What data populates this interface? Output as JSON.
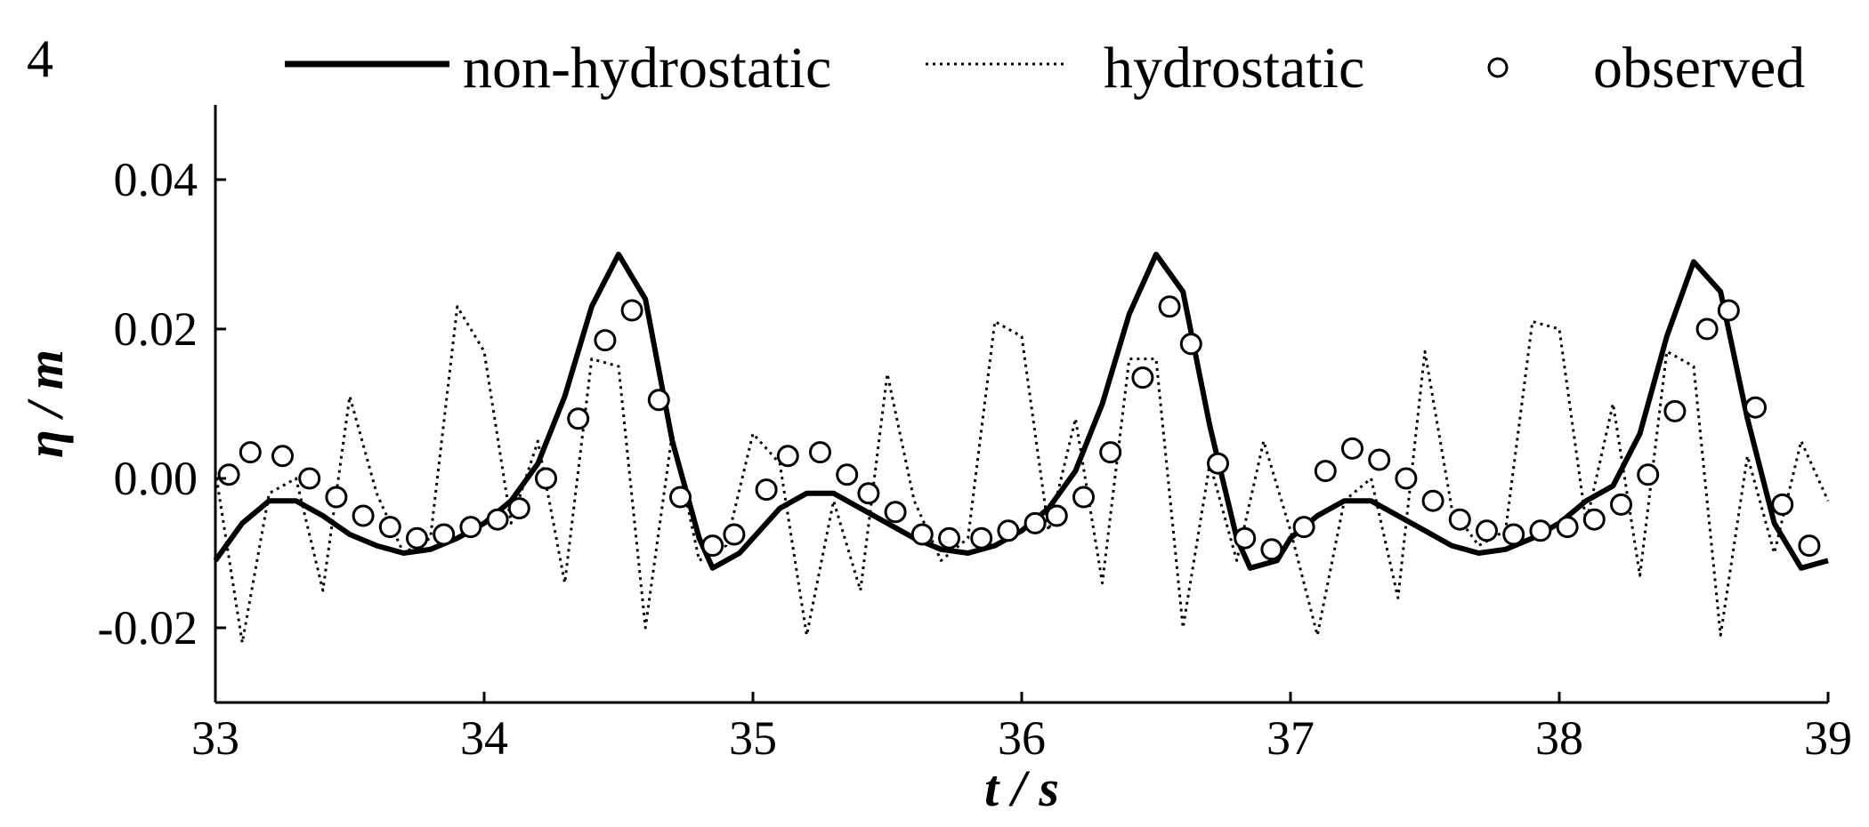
{
  "panel_label": "4",
  "legend": {
    "nonhydrostatic": "non-hydrostatic",
    "hydrostatic": "hydrostatic",
    "observed": "observed"
  },
  "colors": {
    "line": "#000000",
    "marker_fill": "#ffffff"
  },
  "chart_data": {
    "type": "line",
    "xlabel": "t / s",
    "ylabel": "η / m",
    "xlim": [
      33,
      39
    ],
    "ylim": [
      -0.03,
      0.05
    ],
    "xticks": [
      33,
      34,
      35,
      36,
      37,
      38,
      39
    ],
    "xtick_labels": [
      "33",
      "34",
      "35",
      "36",
      "37",
      "38",
      "39"
    ],
    "yticks": [
      -0.02,
      0.0,
      0.02,
      0.04
    ],
    "ytick_labels": [
      "-0.02",
      "0.00",
      "0.02",
      "0.04"
    ],
    "grid": false,
    "legend_position": "top",
    "series": [
      {
        "name": "non-hydrostatic",
        "style": "solid",
        "x": [
          33.0,
          33.1,
          33.2,
          33.3,
          33.4,
          33.5,
          33.6,
          33.7,
          33.8,
          33.9,
          34.0,
          34.1,
          34.2,
          34.3,
          34.4,
          34.5,
          34.6,
          34.7,
          34.8,
          34.85,
          34.95,
          35.0,
          35.1,
          35.2,
          35.3,
          35.4,
          35.5,
          35.6,
          35.7,
          35.8,
          35.9,
          36.0,
          36.1,
          36.2,
          36.3,
          36.4,
          36.5,
          36.6,
          36.7,
          36.8,
          36.85,
          36.95,
          37.0,
          37.1,
          37.2,
          37.3,
          37.4,
          37.5,
          37.6,
          37.7,
          37.8,
          37.9,
          38.0,
          38.1,
          38.2,
          38.3,
          38.4,
          38.5,
          38.6,
          38.7,
          38.8,
          38.9,
          39.0
        ],
        "values": [
          -0.011,
          -0.006,
          -0.003,
          -0.003,
          -0.005,
          -0.0075,
          -0.009,
          -0.01,
          -0.0095,
          -0.008,
          -0.006,
          -0.003,
          0.002,
          0.011,
          0.023,
          0.03,
          0.024,
          0.005,
          -0.008,
          -0.012,
          -0.01,
          -0.008,
          -0.004,
          -0.002,
          -0.002,
          -0.004,
          -0.006,
          -0.008,
          -0.0095,
          -0.01,
          -0.009,
          -0.007,
          -0.004,
          0.001,
          0.01,
          0.022,
          0.03,
          0.025,
          0.007,
          -0.008,
          -0.012,
          -0.011,
          -0.008,
          -0.005,
          -0.003,
          -0.003,
          -0.005,
          -0.007,
          -0.009,
          -0.01,
          -0.0095,
          -0.008,
          -0.006,
          -0.003,
          -0.001,
          0.006,
          0.019,
          0.029,
          0.025,
          0.008,
          -0.006,
          -0.012,
          -0.011
        ]
      },
      {
        "name": "hydrostatic",
        "style": "dotted",
        "x": [
          33.0,
          33.1,
          33.2,
          33.3,
          33.4,
          33.5,
          33.6,
          33.7,
          33.8,
          33.9,
          34.0,
          34.1,
          34.2,
          34.3,
          34.4,
          34.5,
          34.6,
          34.7,
          34.8,
          34.9,
          35.0,
          35.1,
          35.2,
          35.3,
          35.4,
          35.5,
          35.6,
          35.7,
          35.8,
          35.9,
          36.0,
          36.1,
          36.2,
          36.3,
          36.4,
          36.5,
          36.6,
          36.7,
          36.8,
          36.9,
          37.0,
          37.1,
          37.2,
          37.3,
          37.4,
          37.5,
          37.6,
          37.7,
          37.8,
          37.9,
          38.0,
          38.1,
          38.2,
          38.3,
          38.4,
          38.5,
          38.6,
          38.7,
          38.8,
          38.9,
          39.0
        ],
        "values": [
          0.001,
          -0.022,
          -0.002,
          0.0,
          -0.015,
          0.011,
          -0.002,
          -0.01,
          -0.008,
          0.023,
          0.017,
          -0.006,
          0.005,
          -0.014,
          0.016,
          0.015,
          -0.02,
          0.006,
          -0.011,
          -0.009,
          0.006,
          0.002,
          -0.021,
          -0.003,
          -0.015,
          0.014,
          -0.003,
          -0.011,
          -0.008,
          0.021,
          0.019,
          -0.007,
          0.008,
          -0.014,
          0.016,
          0.016,
          -0.02,
          0.002,
          -0.011,
          0.005,
          -0.007,
          -0.021,
          -0.003,
          0.0,
          -0.016,
          0.017,
          -0.004,
          -0.009,
          -0.007,
          0.021,
          0.02,
          -0.006,
          0.01,
          -0.013,
          0.017,
          0.015,
          -0.021,
          0.003,
          -0.01,
          0.005,
          -0.003
        ]
      },
      {
        "name": "observed",
        "style": "marker",
        "x": [
          33.05,
          33.13,
          33.25,
          33.35,
          33.45,
          33.55,
          33.65,
          33.75,
          33.85,
          33.95,
          34.05,
          34.13,
          34.23,
          34.35,
          34.45,
          34.55,
          34.65,
          34.73,
          34.85,
          34.93,
          35.05,
          35.13,
          35.25,
          35.35,
          35.43,
          35.53,
          35.63,
          35.73,
          35.85,
          35.95,
          36.05,
          36.13,
          36.23,
          36.33,
          36.45,
          36.55,
          36.63,
          36.73,
          36.83,
          36.93,
          37.05,
          37.13,
          37.23,
          37.33,
          37.43,
          37.53,
          37.63,
          37.73,
          37.83,
          37.93,
          38.03,
          38.13,
          38.23,
          38.33,
          38.43,
          38.55,
          38.63,
          38.73,
          38.83,
          38.93
        ],
        "values": [
          0.0005,
          0.0035,
          0.003,
          0.0,
          -0.0025,
          -0.005,
          -0.0065,
          -0.008,
          -0.0075,
          -0.0065,
          -0.0055,
          -0.004,
          0.0,
          0.008,
          0.0185,
          0.0225,
          0.0105,
          -0.0025,
          -0.009,
          -0.0075,
          -0.0015,
          0.003,
          0.0035,
          0.0005,
          -0.002,
          -0.0045,
          -0.0075,
          -0.008,
          -0.008,
          -0.007,
          -0.006,
          -0.005,
          -0.0025,
          0.0035,
          0.0135,
          0.023,
          0.018,
          0.002,
          -0.008,
          -0.0095,
          -0.0065,
          0.001,
          0.004,
          0.0025,
          0.0,
          -0.003,
          -0.0055,
          -0.007,
          -0.0075,
          -0.007,
          -0.0065,
          -0.0055,
          -0.0035,
          0.0005,
          0.009,
          0.02,
          0.0225,
          0.0095,
          -0.0035,
          -0.009
        ]
      }
    ]
  }
}
